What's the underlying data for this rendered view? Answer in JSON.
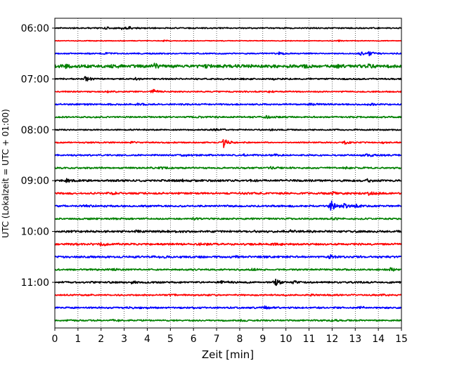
{
  "chart_data": {
    "type": "line",
    "title": "",
    "xlabel": "Zeit  [min]",
    "ylabel": "UTC (Lokalzeit = UTC + 01:00)",
    "xlim": [
      0,
      15
    ],
    "x_ticks": [
      0,
      1,
      2,
      3,
      4,
      5,
      6,
      7,
      8,
      9,
      10,
      11,
      12,
      13,
      14,
      15
    ],
    "y_tick_labels": [
      "06:00",
      "07:00",
      "08:00",
      "09:00",
      "10:00",
      "11:00"
    ],
    "grid": "vertical dotted lines at each minute",
    "trace_interval_min": 15,
    "colors_cycle": [
      "#000000",
      "#ff0000",
      "#0000ff",
      "#008000"
    ],
    "traces": [
      {
        "start": "06:00",
        "color": "#000000",
        "noise": 1.0,
        "events": [
          [
            2.2,
            1.2
          ],
          [
            2.9,
            2.0
          ],
          [
            3.2,
            1.5
          ]
        ]
      },
      {
        "start": "06:15",
        "color": "#ff0000",
        "noise": 0.6,
        "events": [
          [
            4.7,
            1.0
          ],
          [
            12.3,
            1.0
          ]
        ]
      },
      {
        "start": "06:30",
        "color": "#0000ff",
        "noise": 1.0,
        "events": [
          [
            2.2,
            1.4
          ],
          [
            9.7,
            2.0
          ],
          [
            13.2,
            2.5
          ],
          [
            13.6,
            3.5
          ]
        ]
      },
      {
        "start": "06:45",
        "color": "#008000",
        "noise": 2.4,
        "events": [
          [
            0.5,
            3.0
          ],
          [
            2.5,
            2.5
          ],
          [
            4.3,
            3.0
          ],
          [
            6.5,
            2.5
          ],
          [
            10.8,
            3.0
          ],
          [
            12.2,
            3.0
          ],
          [
            13.5,
            2.5
          ]
        ]
      },
      {
        "start": "07:00",
        "color": "#000000",
        "noise": 1.2,
        "events": [
          [
            1.3,
            4.0
          ],
          [
            3.5,
            1.5
          ],
          [
            9.5,
            1.5
          ]
        ]
      },
      {
        "start": "07:15",
        "color": "#ff0000",
        "noise": 1.0,
        "events": [
          [
            4.2,
            7.0
          ],
          [
            2.3,
            1.8
          ],
          [
            9.3,
            1.5
          ]
        ]
      },
      {
        "start": "07:30",
        "color": "#0000ff",
        "noise": 1.2,
        "events": [
          [
            3.5,
            1.8
          ],
          [
            11.0,
            1.5
          ],
          [
            13.6,
            1.8
          ]
        ]
      },
      {
        "start": "07:45",
        "color": "#008000",
        "noise": 1.2,
        "events": [
          [
            9.1,
            2.0
          ],
          [
            6.3,
            1.5
          ]
        ]
      },
      {
        "start": "08:00",
        "color": "#000000",
        "noise": 1.0,
        "events": [
          [
            6.8,
            3.5
          ],
          [
            9.3,
            1.5
          ]
        ]
      },
      {
        "start": "08:15",
        "color": "#ff0000",
        "noise": 1.0,
        "events": [
          [
            7.3,
            7.0
          ],
          [
            12.5,
            2.5
          ],
          [
            3.3,
            1.5
          ],
          [
            14.2,
            1.5
          ]
        ]
      },
      {
        "start": "08:30",
        "color": "#0000ff",
        "noise": 1.3,
        "events": [
          [
            5.5,
            1.5
          ],
          [
            8.2,
            2.0
          ],
          [
            9.5,
            1.8
          ],
          [
            13.5,
            1.8
          ]
        ]
      },
      {
        "start": "08:45",
        "color": "#008000",
        "noise": 1.3,
        "events": [
          [
            12.5,
            2.2
          ],
          [
            4.5,
            1.5
          ],
          [
            9.3,
            1.5
          ]
        ]
      },
      {
        "start": "09:00",
        "color": "#000000",
        "noise": 1.6,
        "events": [
          [
            0.5,
            2.0
          ],
          [
            5.5,
            1.8
          ],
          [
            8.5,
            1.5
          ],
          [
            13.5,
            1.8
          ]
        ]
      },
      {
        "start": "09:15",
        "color": "#ff0000",
        "noise": 1.5,
        "events": [
          [
            12.0,
            3.0
          ],
          [
            13.6,
            2.5
          ],
          [
            2.5,
            1.5
          ]
        ]
      },
      {
        "start": "09:30",
        "color": "#0000ff",
        "noise": 1.5,
        "events": [
          [
            11.9,
            9.0
          ],
          [
            12.5,
            3.0
          ],
          [
            13.0,
            2.5
          ],
          [
            1.2,
            1.5
          ]
        ]
      },
      {
        "start": "09:45",
        "color": "#008000",
        "noise": 1.3,
        "events": [
          [
            2.5,
            1.5
          ],
          [
            6.0,
            1.5
          ],
          [
            12.0,
            1.5
          ]
        ]
      },
      {
        "start": "10:00",
        "color": "#000000",
        "noise": 1.6,
        "events": [
          [
            3.5,
            2.0
          ],
          [
            10.2,
            1.8
          ]
        ]
      },
      {
        "start": "10:15",
        "color": "#ff0000",
        "noise": 1.6,
        "events": [
          [
            6.2,
            2.2
          ],
          [
            9.5,
            1.8
          ],
          [
            2.0,
            2.0
          ]
        ]
      },
      {
        "start": "10:30",
        "color": "#0000ff",
        "noise": 1.6,
        "events": [
          [
            11.9,
            3.0
          ],
          [
            4.5,
            1.5
          ],
          [
            7.8,
            1.5
          ]
        ]
      },
      {
        "start": "10:45",
        "color": "#008000",
        "noise": 1.3,
        "events": [
          [
            14.5,
            2.2
          ],
          [
            2.5,
            1.5
          ],
          [
            8.5,
            1.5
          ]
        ]
      },
      {
        "start": "11:00",
        "color": "#000000",
        "noise": 1.4,
        "events": [
          [
            9.5,
            5.5
          ],
          [
            10.3,
            2.0
          ],
          [
            7.2,
            2.0
          ],
          [
            3.3,
            1.5
          ]
        ]
      },
      {
        "start": "11:15",
        "color": "#ff0000",
        "noise": 1.2,
        "events": [
          [
            5.0,
            1.8
          ],
          [
            14.0,
            1.5
          ],
          [
            11.0,
            1.5
          ]
        ]
      },
      {
        "start": "11:30",
        "color": "#0000ff",
        "noise": 1.3,
        "events": [
          [
            9.0,
            3.0
          ],
          [
            3.2,
            1.8
          ],
          [
            13.2,
            1.5
          ]
        ]
      },
      {
        "start": "11:45",
        "color": "#008000",
        "noise": 1.2,
        "events": [
          [
            2.5,
            1.5
          ],
          [
            8.0,
            1.5
          ],
          [
            12.0,
            1.5
          ]
        ]
      }
    ]
  }
}
